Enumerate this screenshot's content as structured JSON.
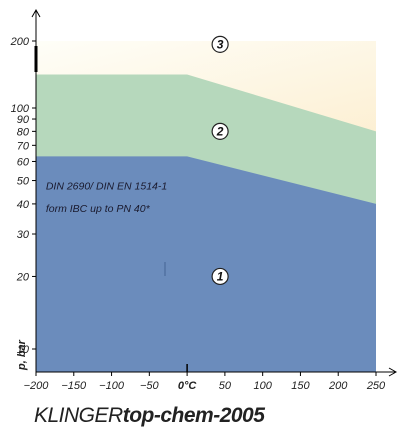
{
  "chart_data": {
    "type": "area",
    "title": "",
    "xlabel": "",
    "ylabel": "p, bar",
    "xlim": [
      -200,
      250
    ],
    "ylim": [
      0,
      200
    ],
    "y_scale": "log (0–100), compressed segment 100–200",
    "x_ticks": [
      -200,
      -150,
      -100,
      -50,
      0,
      50,
      100,
      150,
      200,
      250
    ],
    "x_tick_labels": [
      "−200",
      "−150",
      "−100",
      "−50",
      "0°C",
      "50",
      "100",
      "150",
      "200",
      "250"
    ],
    "y_ticks": [
      10,
      20,
      30,
      40,
      50,
      60,
      70,
      80,
      90,
      100,
      200
    ],
    "y_tick_labels": [
      "10",
      "20",
      "30",
      "40",
      "50",
      "60",
      "70",
      "80",
      "90",
      "100",
      "200"
    ],
    "zones": [
      {
        "name": "1",
        "boundary": {
          "x": [
            -200,
            0,
            250
          ],
          "y": [
            63,
            63,
            40
          ]
        }
      },
      {
        "name": "2",
        "boundary": {
          "x": [
            -200,
            0,
            250
          ],
          "y": [
            150,
            150,
            80
          ]
        }
      },
      {
        "name": "3",
        "boundary": {
          "x": [
            -200,
            250
          ],
          "y": [
            200,
            200
          ]
        }
      }
    ],
    "zone_labels": [
      {
        "text": "1",
        "x": 45,
        "y": 20
      },
      {
        "text": "2",
        "x": 45,
        "y": 80
      },
      {
        "text": "3",
        "x": 45,
        "y": 195
      }
    ],
    "annotations": [
      {
        "text": "DIN 2690/ DIN EN 1514-1",
        "x": -187,
        "y": 46
      },
      {
        "text": "form IBC up to PN 40*",
        "x": -187,
        "y": 37
      }
    ],
    "grid": false
  },
  "product": {
    "prefix": "KLINGER",
    "name": "top-chem-2005"
  },
  "colors": {
    "zone1": "#6b8cbc",
    "zone2": "#b6d8bc",
    "zone3_top": "#fdfdf6",
    "zone3_bottom": "#fbe3b4",
    "axis": "#000000"
  }
}
